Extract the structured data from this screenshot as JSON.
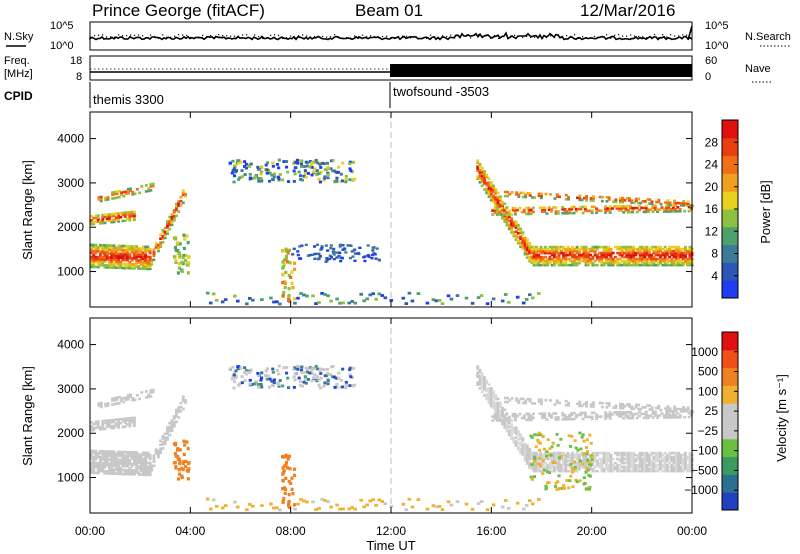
{
  "header": {
    "station": "Prince George (fitACF)",
    "beam": "Beam 01",
    "date": "12/Mar/2016"
  },
  "aux_panels": {
    "nsky_label": "N.Sky",
    "nsky_ticks": [
      "10^5",
      "10^0"
    ],
    "nsearch_label": "N.Search",
    "nsearch_ticks": [
      "10^5",
      "10^0"
    ],
    "freq_label_1": "Freq.",
    "freq_label_2": "[MHz]",
    "freq_ticks": [
      "18",
      "8"
    ],
    "nave_label": "Nave",
    "nave_ticks": [
      "60",
      "0"
    ],
    "cpid_label": "CPID",
    "cpid_segments": [
      {
        "label": "themis 3300",
        "start_hour": 0
      },
      {
        "label": "twofsound -3503",
        "start_hour": 12
      }
    ]
  },
  "chart_data": [
    {
      "type": "heatmap",
      "name": "power-panel",
      "ylabel": "Slant Range [km]",
      "yticks": [
        "4000",
        "3000",
        "2000",
        "1000"
      ],
      "ytick_values": [
        4000,
        3000,
        2000,
        1000
      ],
      "ylim": [
        200,
        4600
      ],
      "xlim": [
        0,
        24
      ],
      "colorbar": {
        "label": "Power [dB]",
        "ticks": [
          "28",
          "24",
          "20",
          "16",
          "12",
          "8",
          "4"
        ],
        "tick_values": [
          28,
          24,
          20,
          16,
          12,
          8,
          4
        ],
        "range": [
          0,
          32
        ],
        "colors": [
          "#1f3cf0",
          "#2b56b8",
          "#3c7a98",
          "#4ea06c",
          "#8cc040",
          "#e8d020",
          "#f0a020",
          "#f07018",
          "#e84010",
          "#e01010"
        ]
      }
    },
    {
      "type": "heatmap",
      "name": "velocity-panel",
      "ylabel": "Slant Range [km]",
      "yticks": [
        "4000",
        "3000",
        "2000",
        "1000"
      ],
      "ytick_values": [
        4000,
        3000,
        2000,
        1000
      ],
      "ylim": [
        200,
        4600
      ],
      "xlim": [
        0,
        24
      ],
      "colorbar": {
        "label": "Velocity [m s⁻¹]",
        "ticks": [
          "1000",
          "500",
          "100",
          "25",
          "−25",
          "−100",
          "−500",
          "−1000"
        ],
        "tick_values": [
          1000,
          500,
          100,
          25,
          -25,
          -100,
          -500,
          -1000
        ],
        "colors": [
          "#2040c0",
          "#2a7090",
          "#3a9a60",
          "#6cc040",
          "#c8c8c8",
          "#c8c8c8",
          "#f0b030",
          "#f08020",
          "#f05018",
          "#e01010"
        ]
      }
    }
  ],
  "xaxis": {
    "label": "Time UT",
    "ticks": [
      "00:00",
      "04:00",
      "08:00",
      "12:00",
      "16:00",
      "20:00",
      "00:00"
    ],
    "tick_hours": [
      0,
      4,
      8,
      12,
      16,
      20,
      24
    ]
  }
}
